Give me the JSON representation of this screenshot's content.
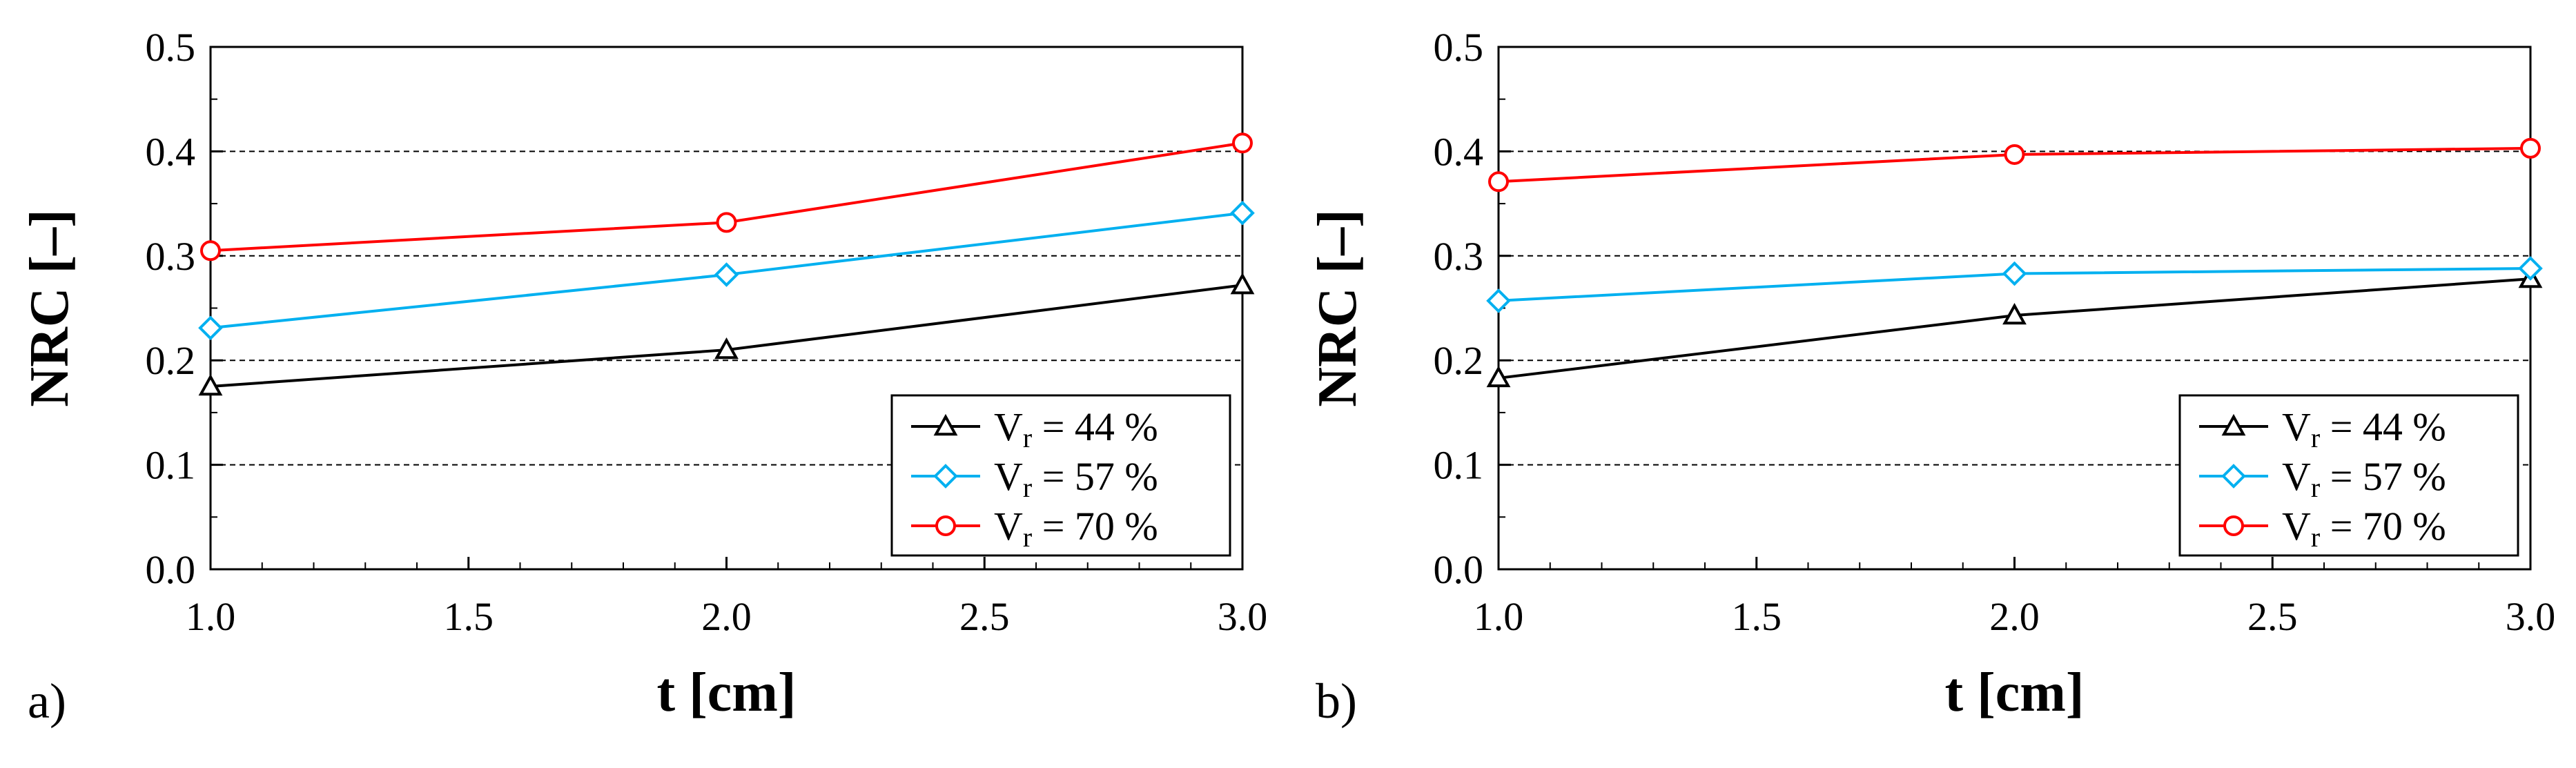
{
  "colors": {
    "series_44": "#000000",
    "series_57": "#00b0f0",
    "series_70": "#ff0000",
    "grid": "#000000",
    "background": "#ffffff"
  },
  "chart_data": [
    {
      "type": "line",
      "panel_label": "a)",
      "title": "",
      "xlabel": "t [cm]",
      "ylabel": "NRC [–]",
      "x": [
        1.0,
        2.0,
        3.0
      ],
      "xlim": [
        1.0,
        3.0
      ],
      "ylim": [
        0.0,
        0.5
      ],
      "xticks": [
        "1.0",
        "1.5",
        "2.0",
        "2.5",
        "3.0"
      ],
      "yticks": [
        "0.0",
        "0.1",
        "0.2",
        "0.3",
        "0.4",
        "0.5"
      ],
      "grid": "horizontal dashed",
      "legend_position": "bottom-right",
      "series": [
        {
          "name": "Vr = 44 %",
          "label_main": "V",
          "label_sub": "r",
          "label_rest": " = 44 %",
          "marker": "triangle",
          "color": "#000000",
          "values": [
            0.175,
            0.21,
            0.272
          ]
        },
        {
          "name": "Vr = 57 %",
          "label_main": "V",
          "label_sub": "r",
          "label_rest": " = 57 %",
          "marker": "diamond",
          "color": "#00b0f0",
          "values": [
            0.231,
            0.282,
            0.341
          ]
        },
        {
          "name": "Vr = 70 %",
          "label_main": "V",
          "label_sub": "r",
          "label_rest": " = 70 %",
          "marker": "circle",
          "color": "#ff0000",
          "values": [
            0.305,
            0.332,
            0.408
          ]
        }
      ]
    },
    {
      "type": "line",
      "panel_label": "b)",
      "title": "",
      "xlabel": "t [cm]",
      "ylabel": "NRC [–]",
      "x": [
        1.0,
        2.0,
        3.0
      ],
      "xlim": [
        1.0,
        3.0
      ],
      "ylim": [
        0.0,
        0.5
      ],
      "xticks": [
        "1.0",
        "1.5",
        "2.0",
        "2.5",
        "3.0"
      ],
      "yticks": [
        "0.0",
        "0.1",
        "0.2",
        "0.3",
        "0.4",
        "0.5"
      ],
      "grid": "horizontal dashed",
      "legend_position": "bottom-right",
      "series": [
        {
          "name": "Vr = 44 %",
          "label_main": "V",
          "label_sub": "r",
          "label_rest": " = 44 %",
          "marker": "triangle",
          "color": "#000000",
          "values": [
            0.183,
            0.243,
            0.278
          ]
        },
        {
          "name": "Vr = 57 %",
          "label_main": "V",
          "label_sub": "r",
          "label_rest": " = 57 %",
          "marker": "diamond",
          "color": "#00b0f0",
          "values": [
            0.257,
            0.283,
            0.288
          ]
        },
        {
          "name": "Vr = 70 %",
          "label_main": "V",
          "label_sub": "r",
          "label_rest": " = 70 %",
          "marker": "circle",
          "color": "#ff0000",
          "values": [
            0.371,
            0.397,
            0.403
          ]
        }
      ]
    }
  ]
}
